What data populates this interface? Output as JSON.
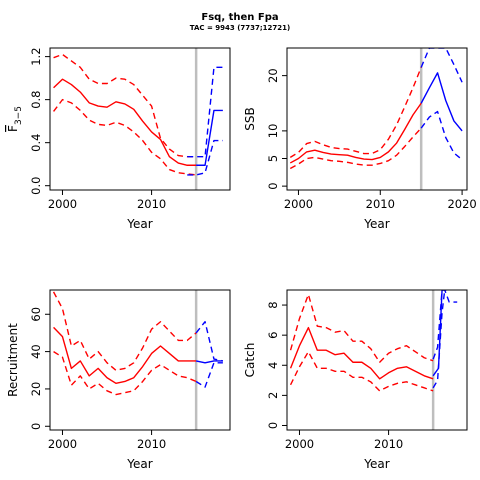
{
  "title": "Fsq, then Fpa",
  "subtitle": "TAC = 9943 (7737;12721)",
  "colors": {
    "red": "#ff0000",
    "blue": "#0000ff",
    "gray": "#bebebe",
    "frame": "#000000"
  },
  "chart_data": [
    {
      "id": "fbar",
      "type": "line",
      "xlabel": "Year",
      "ylabel_main": "F",
      "ylabel_sub": "3−5",
      "xlim": [
        1998.6,
        2018.8
      ],
      "ylim": [
        -0.04,
        1.28
      ],
      "xticks": [
        2000,
        2010
      ],
      "yticks": [
        "0.0",
        "0.4",
        "0.8",
        "1.2"
      ],
      "vline": 2015,
      "series": [
        {
          "role": "hist",
          "dash": false,
          "color": "red",
          "x": [
            1999,
            2000,
            2001,
            2002,
            2003,
            2004,
            2005,
            2006,
            2007,
            2008,
            2009,
            2010,
            2011,
            2012,
            2013,
            2014,
            2015
          ],
          "y": [
            0.91,
            0.99,
            0.94,
            0.87,
            0.77,
            0.74,
            0.73,
            0.78,
            0.76,
            0.71,
            0.6,
            0.5,
            0.43,
            0.27,
            0.21,
            0.19,
            0.19
          ]
        },
        {
          "role": "hist_upper",
          "dash": true,
          "color": "red",
          "x": [
            1999,
            2000,
            2001,
            2002,
            2003,
            2004,
            2005,
            2006,
            2007,
            2008,
            2009,
            2010,
            2011,
            2012,
            2013,
            2014,
            2015
          ],
          "y": [
            1.19,
            1.22,
            1.16,
            1.1,
            0.99,
            0.95,
            0.95,
            1.0,
            0.99,
            0.94,
            0.84,
            0.74,
            0.44,
            0.34,
            0.28,
            0.27,
            0.27
          ]
        },
        {
          "role": "hist_lower",
          "dash": true,
          "color": "red",
          "x": [
            1999,
            2000,
            2001,
            2002,
            2003,
            2004,
            2005,
            2006,
            2007,
            2008,
            2009,
            2010,
            2011,
            2012,
            2013,
            2014,
            2015
          ],
          "y": [
            0.69,
            0.8,
            0.77,
            0.7,
            0.61,
            0.57,
            0.56,
            0.59,
            0.56,
            0.5,
            0.42,
            0.31,
            0.25,
            0.15,
            0.12,
            0.11,
            0.1
          ]
        },
        {
          "role": "proj",
          "dash": false,
          "color": "blue",
          "x": [
            2015,
            2016,
            2017,
            2018
          ],
          "y": [
            0.19,
            0.19,
            0.7,
            0.7
          ]
        },
        {
          "role": "proj_upper",
          "dash": true,
          "color": "blue",
          "x": [
            2014,
            2015,
            2016,
            2017,
            2018
          ],
          "y": [
            0.27,
            0.27,
            0.27,
            1.1,
            1.1
          ]
        },
        {
          "role": "proj_lower",
          "dash": true,
          "color": "blue",
          "x": [
            2014,
            2015,
            2016,
            2017,
            2018
          ],
          "y": [
            0.1,
            0.1,
            0.12,
            0.42,
            0.42
          ]
        }
      ]
    },
    {
      "id": "ssb",
      "type": "line",
      "xlabel": "Year",
      "ylabel": "SSB",
      "xlim": [
        1998.6,
        2020.6
      ],
      "ylim": [
        -0.7,
        25
      ],
      "xticks": [
        2000,
        2010,
        2020
      ],
      "yticks": [
        "0",
        "5",
        "10",
        "20"
      ],
      "ytick_values": [
        0,
        5,
        10,
        20
      ],
      "vline": 2015,
      "series": [
        {
          "role": "hist",
          "dash": false,
          "color": "red",
          "x": [
            1999,
            2000,
            2001,
            2002,
            2003,
            2004,
            2005,
            2006,
            2007,
            2008,
            2009,
            2010,
            2011,
            2012,
            2013,
            2014,
            2015
          ],
          "y": [
            4.2,
            5.0,
            6.2,
            6.5,
            6.1,
            5.8,
            5.7,
            5.6,
            5.2,
            4.9,
            4.8,
            5.2,
            6.2,
            7.8,
            10.3,
            12.9,
            15.0
          ]
        },
        {
          "role": "hist_upper",
          "dash": true,
          "color": "red",
          "x": [
            1999,
            2000,
            2001,
            2002,
            2003,
            2004,
            2005,
            2006,
            2007,
            2008,
            2009,
            2010,
            2011,
            2012,
            2013,
            2014,
            2015
          ],
          "y": [
            5.2,
            6.1,
            7.7,
            8.1,
            7.5,
            7.0,
            6.8,
            6.7,
            6.3,
            5.9,
            5.9,
            6.6,
            8.5,
            11.1,
            14.4,
            17.8,
            21.5
          ]
        },
        {
          "role": "hist_lower",
          "dash": true,
          "color": "red",
          "x": [
            1999,
            2000,
            2001,
            2002,
            2003,
            2004,
            2005,
            2006,
            2007,
            2008,
            2009,
            2010,
            2011,
            2012,
            2013,
            2014,
            2015
          ],
          "y": [
            3.2,
            4.0,
            5.0,
            5.2,
            4.9,
            4.6,
            4.5,
            4.3,
            4.0,
            3.8,
            3.8,
            4.1,
            4.6,
            5.6,
            7.2,
            8.9,
            10.5
          ]
        },
        {
          "role": "proj",
          "dash": false,
          "color": "blue",
          "x": [
            2015,
            2016,
            2017,
            2018,
            2019,
            2020
          ],
          "y": [
            15.0,
            17.8,
            20.5,
            15.5,
            11.8,
            10.0
          ]
        },
        {
          "role": "proj_upper",
          "dash": true,
          "color": "blue",
          "x": [
            2015,
            2016,
            2017,
            2018,
            2019,
            2020
          ],
          "y": [
            21.5,
            25.0,
            25.0,
            25.0,
            22.0,
            18.8
          ]
        },
        {
          "role": "proj_lower",
          "dash": true,
          "color": "blue",
          "x": [
            2015,
            2016,
            2017,
            2018,
            2019,
            2020
          ],
          "y": [
            10.5,
            12.5,
            13.5,
            8.8,
            6.0,
            4.8
          ]
        }
      ]
    },
    {
      "id": "recruitment",
      "type": "line",
      "xlabel": "Year",
      "ylabel": "Recruitment",
      "xlim": [
        1998.6,
        2018.8
      ],
      "ylim": [
        -2,
        73
      ],
      "xticks": [
        2000,
        2010
      ],
      "yticks": [
        "0",
        "20",
        "40",
        "60"
      ],
      "ytick_values": [
        0,
        20,
        40,
        60
      ],
      "vline": 2015,
      "series": [
        {
          "role": "hist",
          "dash": false,
          "color": "red",
          "x": [
            1999,
            2000,
            2001,
            2002,
            2003,
            2004,
            2005,
            2006,
            2007,
            2008,
            2009,
            2010,
            2011,
            2012,
            2013,
            2014,
            2015
          ],
          "y": [
            53,
            48,
            31,
            35,
            27,
            31,
            26,
            23,
            24,
            26,
            32,
            39,
            43,
            39,
            35,
            35,
            35
          ]
        },
        {
          "role": "hist_upper",
          "dash": true,
          "color": "red",
          "x": [
            1999,
            2000,
            2001,
            2002,
            2003,
            2004,
            2005,
            2006,
            2007,
            2008,
            2009,
            2010,
            2011,
            2012,
            2013,
            2014,
            2015
          ],
          "y": [
            72,
            63,
            43,
            46,
            36,
            40,
            34,
            30,
            31,
            34,
            42,
            52,
            56,
            51,
            46,
            46,
            50
          ]
        },
        {
          "role": "hist_lower",
          "dash": true,
          "color": "red",
          "x": [
            1999,
            2000,
            2001,
            2002,
            2003,
            2004,
            2005,
            2006,
            2007,
            2008,
            2009,
            2010,
            2011,
            2012,
            2013,
            2014,
            2015
          ],
          "y": [
            40,
            37,
            22,
            27,
            20,
            23,
            19,
            17,
            18,
            19,
            24,
            30,
            33,
            30,
            27,
            26,
            24
          ]
        },
        {
          "role": "proj",
          "dash": false,
          "color": "blue",
          "x": [
            2015,
            2016,
            2017,
            2018
          ],
          "y": [
            35,
            34,
            35,
            35
          ]
        },
        {
          "role": "proj_upper",
          "dash": true,
          "color": "blue",
          "x": [
            2015,
            2016,
            2017,
            2018
          ],
          "y": [
            50,
            56,
            36,
            35
          ]
        },
        {
          "role": "proj_lower",
          "dash": true,
          "color": "blue",
          "x": [
            2015,
            2016,
            2017,
            2018
          ],
          "y": [
            24,
            21,
            34,
            34
          ]
        }
      ]
    },
    {
      "id": "catch",
      "type": "line",
      "xlabel": "Year",
      "ylabel": "Catch",
      "xlim": [
        1998.6,
        2018.8
      ],
      "ylim": [
        -0.3,
        9.0
      ],
      "xticks": [
        2000,
        2010
      ],
      "yticks": [
        "0",
        "2",
        "4",
        "6",
        "8"
      ],
      "ytick_values": [
        0,
        2,
        4,
        6,
        8
      ],
      "vline": 2015,
      "series": [
        {
          "role": "hist",
          "dash": false,
          "color": "red",
          "x": [
            1999,
            2000,
            2001,
            2002,
            2003,
            2004,
            2005,
            2006,
            2007,
            2008,
            2009,
            2010,
            2011,
            2012,
            2013,
            2014,
            2015
          ],
          "y": [
            3.8,
            5.3,
            6.5,
            5.0,
            5.0,
            4.7,
            4.8,
            4.2,
            4.2,
            3.8,
            3.1,
            3.5,
            3.8,
            3.9,
            3.6,
            3.3,
            3.1
          ]
        },
        {
          "role": "hist_upper",
          "dash": true,
          "color": "red",
          "x": [
            1999,
            2000,
            2001,
            2002,
            2003,
            2004,
            2005,
            2006,
            2007,
            2008,
            2009,
            2010,
            2011,
            2012,
            2013,
            2014,
            2015
          ],
          "y": [
            5.0,
            7.1,
            8.7,
            6.6,
            6.5,
            6.2,
            6.3,
            5.6,
            5.6,
            5.1,
            4.2,
            4.8,
            5.1,
            5.3,
            4.9,
            4.5,
            4.3
          ]
        },
        {
          "role": "hist_lower",
          "dash": true,
          "color": "red",
          "x": [
            1999,
            2000,
            2001,
            2002,
            2003,
            2004,
            2005,
            2006,
            2007,
            2008,
            2009,
            2010,
            2011,
            2012,
            2013,
            2014,
            2015
          ],
          "y": [
            2.7,
            3.9,
            4.9,
            3.8,
            3.8,
            3.6,
            3.6,
            3.2,
            3.2,
            2.9,
            2.3,
            2.6,
            2.8,
            2.9,
            2.7,
            2.5,
            2.3
          ]
        },
        {
          "role": "proj",
          "dash": false,
          "color": "blue",
          "x": [
            2015,
            2015.6,
            2016,
            2016.5
          ],
          "y": [
            3.3,
            3.8,
            9.0,
            9.0
          ]
        },
        {
          "role": "proj_upper",
          "dash": true,
          "color": "blue",
          "x": [
            2015,
            2015.5,
            2016,
            2016.3,
            2016.8,
            2017.7
          ],
          "y": [
            4.4,
            5.2,
            9.0,
            9.0,
            8.2,
            8.2
          ]
        },
        {
          "role": "proj_lower",
          "dash": true,
          "color": "blue",
          "x": [
            2015,
            2015.5,
            2016,
            2016.3
          ],
          "y": [
            2.5,
            3.0,
            7.5,
            9.0
          ]
        }
      ]
    }
  ]
}
